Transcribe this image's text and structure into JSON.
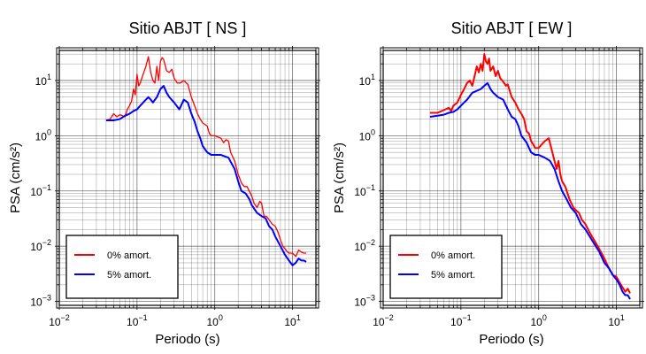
{
  "chart_data": [
    {
      "type": "line",
      "title": "Sitio ABJT [ NS ]",
      "xlabel": "Periodo (s)",
      "ylabel": "PSA (cm/s²)",
      "xscale": "log",
      "yscale": "log",
      "xlim": [
        0.01,
        20
      ],
      "ylim": [
        0.00085,
        35
      ],
      "xticks": [
        0.01,
        0.1,
        1,
        10
      ],
      "xtick_labels": [
        {
          "base": "10",
          "exp": "−2"
        },
        {
          "base": "10",
          "exp": "−1"
        },
        {
          "base": "10",
          "exp": "0"
        },
        {
          "base": "10",
          "exp": "1"
        }
      ],
      "yticks": [
        0.001,
        0.01,
        0.1,
        1,
        10
      ],
      "ytick_labels": [
        {
          "base": "10",
          "exp": "−3"
        },
        {
          "base": "10",
          "exp": "−2"
        },
        {
          "base": "10",
          "exp": "−1"
        },
        {
          "base": "10",
          "exp": "0"
        },
        {
          "base": "10",
          "exp": "1"
        }
      ],
      "grid": true,
      "legend_position": "bottom-left",
      "series": [
        {
          "name": "0% amort.",
          "color": "#ff0000",
          "width": 1.3,
          "points": [
            [
              0.04,
              1.9
            ],
            [
              0.045,
              2.0
            ],
            [
              0.05,
              2.5
            ],
            [
              0.055,
              2.2
            ],
            [
              0.06,
              2.4
            ],
            [
              0.065,
              2.3
            ],
            [
              0.07,
              2.2
            ],
            [
              0.075,
              3.0
            ],
            [
              0.08,
              3.5
            ],
            [
              0.085,
              4.2
            ],
            [
              0.09,
              7.0
            ],
            [
              0.095,
              5.5
            ],
            [
              0.1,
              13.0
            ],
            [
              0.105,
              8.0
            ],
            [
              0.11,
              9.0
            ],
            [
              0.12,
              13.0
            ],
            [
              0.13,
              18.0
            ],
            [
              0.14,
              27.0
            ],
            [
              0.15,
              14.0
            ],
            [
              0.16,
              10.0
            ],
            [
              0.17,
              9.0
            ],
            [
              0.18,
              18.0
            ],
            [
              0.19,
              10.0
            ],
            [
              0.2,
              22.0
            ],
            [
              0.21,
              26.0
            ],
            [
              0.22,
              24.0
            ],
            [
              0.24,
              15.0
            ],
            [
              0.26,
              14.0
            ],
            [
              0.28,
              16.0
            ],
            [
              0.3,
              11.0
            ],
            [
              0.33,
              9.0
            ],
            [
              0.36,
              9.0
            ],
            [
              0.4,
              10.0
            ],
            [
              0.45,
              8.5
            ],
            [
              0.5,
              5.0
            ],
            [
              0.55,
              3.5
            ],
            [
              0.6,
              2.5
            ],
            [
              0.65,
              2.0
            ],
            [
              0.7,
              1.7
            ],
            [
              0.8,
              1.5
            ],
            [
              0.85,
              1.1
            ],
            [
              0.9,
              1.0
            ],
            [
              1.0,
              1.0
            ],
            [
              1.2,
              0.9
            ],
            [
              1.3,
              0.75
            ],
            [
              1.4,
              0.85
            ],
            [
              1.5,
              0.8
            ],
            [
              1.6,
              0.5
            ],
            [
              1.8,
              0.35
            ],
            [
              2.0,
              0.2
            ],
            [
              2.2,
              0.14
            ],
            [
              2.4,
              0.12
            ],
            [
              2.6,
              0.12
            ],
            [
              3.0,
              0.08
            ],
            [
              3.2,
              0.06
            ],
            [
              3.5,
              0.05
            ],
            [
              3.8,
              0.065
            ],
            [
              4.0,
              0.06
            ],
            [
              4.3,
              0.035
            ],
            [
              4.6,
              0.035
            ],
            [
              5.0,
              0.03
            ],
            [
              5.5,
              0.025
            ],
            [
              6.0,
              0.023
            ],
            [
              6.5,
              0.018
            ],
            [
              7.0,
              0.013
            ],
            [
              7.5,
              0.01
            ],
            [
              8.0,
              0.009
            ],
            [
              8.5,
              0.008
            ],
            [
              9.0,
              0.0075
            ],
            [
              10.0,
              0.0075
            ],
            [
              10.5,
              0.007
            ],
            [
              11.0,
              0.0065
            ],
            [
              12.0,
              0.0085
            ],
            [
              13.0,
              0.0078
            ],
            [
              14.0,
              0.0075
            ],
            [
              15.0,
              0.0075
            ]
          ]
        },
        {
          "name": "5% amort.",
          "color": "#0000ff",
          "width": 2,
          "points": [
            [
              0.04,
              1.9
            ],
            [
              0.05,
              1.9
            ],
            [
              0.06,
              2.0
            ],
            [
              0.07,
              2.3
            ],
            [
              0.08,
              2.5
            ],
            [
              0.09,
              2.8
            ],
            [
              0.1,
              3.0
            ],
            [
              0.11,
              3.5
            ],
            [
              0.12,
              4.0
            ],
            [
              0.13,
              4.5
            ],
            [
              0.14,
              5.0
            ],
            [
              0.15,
              4.5
            ],
            [
              0.16,
              4.0
            ],
            [
              0.18,
              5.0
            ],
            [
              0.2,
              7.0
            ],
            [
              0.22,
              8.0
            ],
            [
              0.24,
              6.0
            ],
            [
              0.26,
              5.0
            ],
            [
              0.3,
              4.0
            ],
            [
              0.35,
              3.0
            ],
            [
              0.4,
              4.5
            ],
            [
              0.45,
              4.0
            ],
            [
              0.5,
              2.5
            ],
            [
              0.55,
              1.8
            ],
            [
              0.6,
              1.2
            ],
            [
              0.65,
              0.9
            ],
            [
              0.7,
              0.65
            ],
            [
              0.8,
              0.5
            ],
            [
              0.9,
              0.45
            ],
            [
              1.0,
              0.45
            ],
            [
              1.2,
              0.45
            ],
            [
              1.5,
              0.4
            ],
            [
              1.8,
              0.25
            ],
            [
              2.0,
              0.15
            ],
            [
              2.2,
              0.1
            ],
            [
              2.5,
              0.09
            ],
            [
              2.8,
              0.07
            ],
            [
              3.0,
              0.055
            ],
            [
              3.5,
              0.04
            ],
            [
              4.0,
              0.035
            ],
            [
              4.5,
              0.032
            ],
            [
              5.0,
              0.023
            ],
            [
              5.5,
              0.02
            ],
            [
              6.0,
              0.015
            ],
            [
              7.0,
              0.01
            ],
            [
              8.0,
              0.007
            ],
            [
              9.0,
              0.0055
            ],
            [
              10.0,
              0.0045
            ],
            [
              11.0,
              0.005
            ],
            [
              12.0,
              0.006
            ],
            [
              13.0,
              0.0055
            ],
            [
              14.0,
              0.0055
            ],
            [
              15.0,
              0.0052
            ]
          ]
        }
      ]
    },
    {
      "type": "line",
      "title": "Sitio ABJT [ EW ]",
      "xlabel": "Periodo (s)",
      "ylabel": "PSA (cm/s²)",
      "xscale": "log",
      "yscale": "log",
      "xlim": [
        0.01,
        20
      ],
      "ylim": [
        0.00085,
        35
      ],
      "xticks": [
        0.01,
        0.1,
        1,
        10
      ],
      "xtick_labels": [
        {
          "base": "10",
          "exp": "−2"
        },
        {
          "base": "10",
          "exp": "−1"
        },
        {
          "base": "10",
          "exp": "0"
        },
        {
          "base": "10",
          "exp": "1"
        }
      ],
      "yticks": [
        0.001,
        0.01,
        0.1,
        1,
        10
      ],
      "ytick_labels": [
        {
          "base": "10",
          "exp": "−3"
        },
        {
          "base": "10",
          "exp": "−2"
        },
        {
          "base": "10",
          "exp": "−1"
        },
        {
          "base": "10",
          "exp": "0"
        },
        {
          "base": "10",
          "exp": "1"
        }
      ],
      "grid": true,
      "legend_position": "bottom-left",
      "series": [
        {
          "name": "0% amort.",
          "color": "#ff0000",
          "width": 2,
          "points": [
            [
              0.04,
              2.6
            ],
            [
              0.05,
              2.6
            ],
            [
              0.06,
              2.9
            ],
            [
              0.07,
              3.2
            ],
            [
              0.075,
              2.8
            ],
            [
              0.08,
              3.5
            ],
            [
              0.09,
              4.0
            ],
            [
              0.1,
              5.5
            ],
            [
              0.11,
              7.0
            ],
            [
              0.12,
              9.0
            ],
            [
              0.13,
              10.0
            ],
            [
              0.14,
              8.0
            ],
            [
              0.15,
              12.0
            ],
            [
              0.16,
              18.0
            ],
            [
              0.17,
              14.0
            ],
            [
              0.18,
              20.0
            ],
            [
              0.19,
              15.0
            ],
            [
              0.2,
              30.0
            ],
            [
              0.21,
              22.0
            ],
            [
              0.22,
              20.0
            ],
            [
              0.23,
              25.0
            ],
            [
              0.24,
              15.0
            ],
            [
              0.26,
              18.0
            ],
            [
              0.28,
              12.0
            ],
            [
              0.3,
              15.0
            ],
            [
              0.32,
              11.0
            ],
            [
              0.34,
              10.0
            ],
            [
              0.36,
              9.0
            ],
            [
              0.38,
              8.0
            ],
            [
              0.4,
              8.5
            ],
            [
              0.45,
              5.0
            ],
            [
              0.5,
              4.0
            ],
            [
              0.55,
              3.0
            ],
            [
              0.6,
              2.5
            ],
            [
              0.65,
              2.0
            ],
            [
              0.7,
              1.2
            ],
            [
              0.75,
              1.1
            ],
            [
              0.8,
              0.8
            ],
            [
              0.85,
              0.7
            ],
            [
              0.9,
              0.6
            ],
            [
              1.0,
              0.6
            ],
            [
              1.1,
              0.7
            ],
            [
              1.2,
              0.8
            ],
            [
              1.35,
              0.9
            ],
            [
              1.5,
              0.5
            ],
            [
              1.6,
              0.35
            ],
            [
              1.7,
              0.25
            ],
            [
              1.8,
              0.35
            ],
            [
              1.9,
              0.2
            ],
            [
              2.0,
              0.15
            ],
            [
              2.2,
              0.12
            ],
            [
              2.5,
              0.07
            ],
            [
              2.8,
              0.05
            ],
            [
              3.0,
              0.045
            ],
            [
              3.3,
              0.04
            ],
            [
              3.6,
              0.03
            ],
            [
              4.0,
              0.025
            ],
            [
              4.5,
              0.018
            ],
            [
              5.0,
              0.014
            ],
            [
              6.0,
              0.009
            ],
            [
              7.0,
              0.006
            ],
            [
              8.0,
              0.004
            ],
            [
              9.0,
              0.003
            ],
            [
              10.0,
              0.0028
            ],
            [
              11.0,
              0.0022
            ],
            [
              12.0,
              0.0018
            ],
            [
              13.0,
              0.0015
            ],
            [
              14.0,
              0.0017
            ],
            [
              15.0,
              0.0014
            ]
          ]
        },
        {
          "name": "5% amort.",
          "color": "#0000ff",
          "width": 2,
          "points": [
            [
              0.04,
              2.2
            ],
            [
              0.05,
              2.3
            ],
            [
              0.06,
              2.4
            ],
            [
              0.07,
              2.6
            ],
            [
              0.08,
              2.7
            ],
            [
              0.09,
              3.0
            ],
            [
              0.1,
              3.5
            ],
            [
              0.11,
              4.0
            ],
            [
              0.12,
              4.5
            ],
            [
              0.14,
              6.0
            ],
            [
              0.16,
              6.5
            ],
            [
              0.18,
              7.0
            ],
            [
              0.2,
              8.0
            ],
            [
              0.22,
              9.0
            ],
            [
              0.24,
              7.0
            ],
            [
              0.26,
              6.0
            ],
            [
              0.3,
              5.0
            ],
            [
              0.35,
              4.5
            ],
            [
              0.4,
              3.0
            ],
            [
              0.45,
              2.2
            ],
            [
              0.5,
              2.0
            ],
            [
              0.55,
              1.5
            ],
            [
              0.6,
              1.0
            ],
            [
              0.7,
              0.75
            ],
            [
              0.8,
              0.5
            ],
            [
              0.9,
              0.45
            ],
            [
              1.0,
              0.45
            ],
            [
              1.2,
              0.4
            ],
            [
              1.4,
              0.35
            ],
            [
              1.6,
              0.25
            ],
            [
              1.8,
              0.15
            ],
            [
              2.0,
              0.1
            ],
            [
              2.3,
              0.07
            ],
            [
              2.6,
              0.05
            ],
            [
              3.0,
              0.04
            ],
            [
              3.5,
              0.025
            ],
            [
              4.0,
              0.02
            ],
            [
              5.0,
              0.012
            ],
            [
              6.0,
              0.008
            ],
            [
              7.0,
              0.005
            ],
            [
              8.0,
              0.004
            ],
            [
              9.0,
              0.003
            ],
            [
              10.0,
              0.0025
            ],
            [
              11.0,
              0.002
            ],
            [
              12.0,
              0.0015
            ],
            [
              13.0,
              0.0013
            ],
            [
              14.0,
              0.0013
            ],
            [
              15.0,
              0.0011
            ]
          ]
        }
      ]
    }
  ]
}
